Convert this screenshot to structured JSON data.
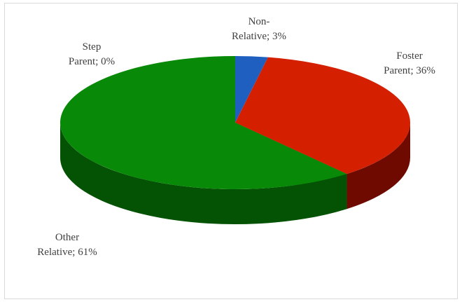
{
  "chart_data": {
    "type": "pie",
    "title": "",
    "slices": [
      {
        "name": "Non-Relative",
        "value": 3,
        "color": "#1f5fbf",
        "side_color": "#123a7a",
        "label_lines": [
          "Non-",
          "Relative; 3%"
        ]
      },
      {
        "name": "Foster Parent",
        "value": 36,
        "color": "#d42000",
        "side_color": "#6e0a00",
        "label_lines": [
          "Foster",
          "Parent; 36%"
        ]
      },
      {
        "name": "Other Relative",
        "value": 61,
        "color": "#088a08",
        "side_color": "#045204",
        "label_lines": [
          "Other",
          "Relative; 61%"
        ]
      },
      {
        "name": "Step Parent",
        "value": 0,
        "color": "#7a3fb0",
        "side_color": "#4a2470",
        "label_lines": [
          "Step",
          "Parent; 0%"
        ]
      }
    ],
    "style": "3d-pie",
    "legend": "none"
  }
}
